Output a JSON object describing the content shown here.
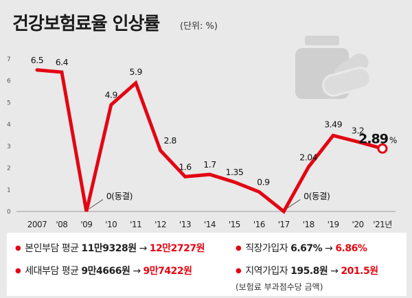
{
  "title": "건강보험료율 인상률",
  "unit": "(단위: %)",
  "chart_data": {
    "type": "line",
    "title": "건강보험료율 인상률",
    "unit": "(단위: %)",
    "categories": [
      "2007",
      "'08",
      "'09",
      "'10",
      "'11",
      "'12",
      "'13",
      "'14",
      "'15",
      "'16",
      "'17",
      "'18",
      "'19",
      "'20",
      "'21년"
    ],
    "values": [
      6.5,
      6.4,
      0,
      4.9,
      5.9,
      2.8,
      1.6,
      1.7,
      1.35,
      0.9,
      0,
      2.04,
      3.49,
      3.2,
      2.89
    ],
    "labels": [
      "6.5",
      "6.4",
      "0(동결)",
      "4.9",
      "5.9",
      "2.8",
      "1.6",
      "1.7",
      "1.35",
      "0.9",
      "0(동결)",
      "2.04",
      "3.49",
      "3.2",
      "2.89"
    ],
    "last_label_suffix": "%",
    "y_ticks": [
      "0",
      "1",
      "2",
      "3",
      "4",
      "5",
      "6",
      "7"
    ],
    "ylim": [
      0,
      7
    ],
    "grid": false,
    "colors": {
      "line": "#e30613",
      "axis_text": "#555555"
    }
  },
  "info": {
    "row1_left": {
      "label": "본인부담 평균 ",
      "from": "11만9328원",
      "arrow": " → ",
      "to": "12만2727원"
    },
    "row1_right": {
      "label": "직장가입자 ",
      "from": "6.67%",
      "arrow": " → ",
      "to": "6.86%"
    },
    "row2_left": {
      "label": "세대부담 평균 ",
      "from": "9만4666원",
      "arrow": " → ",
      "to": "9만7422원"
    },
    "row2_right": {
      "label": "지역가입자 ",
      "from": "195.8원",
      "arrow": " → ",
      "to": "201.5원"
    },
    "note": "(보험료 부과점수당 금액)",
    "bullet": "●"
  }
}
